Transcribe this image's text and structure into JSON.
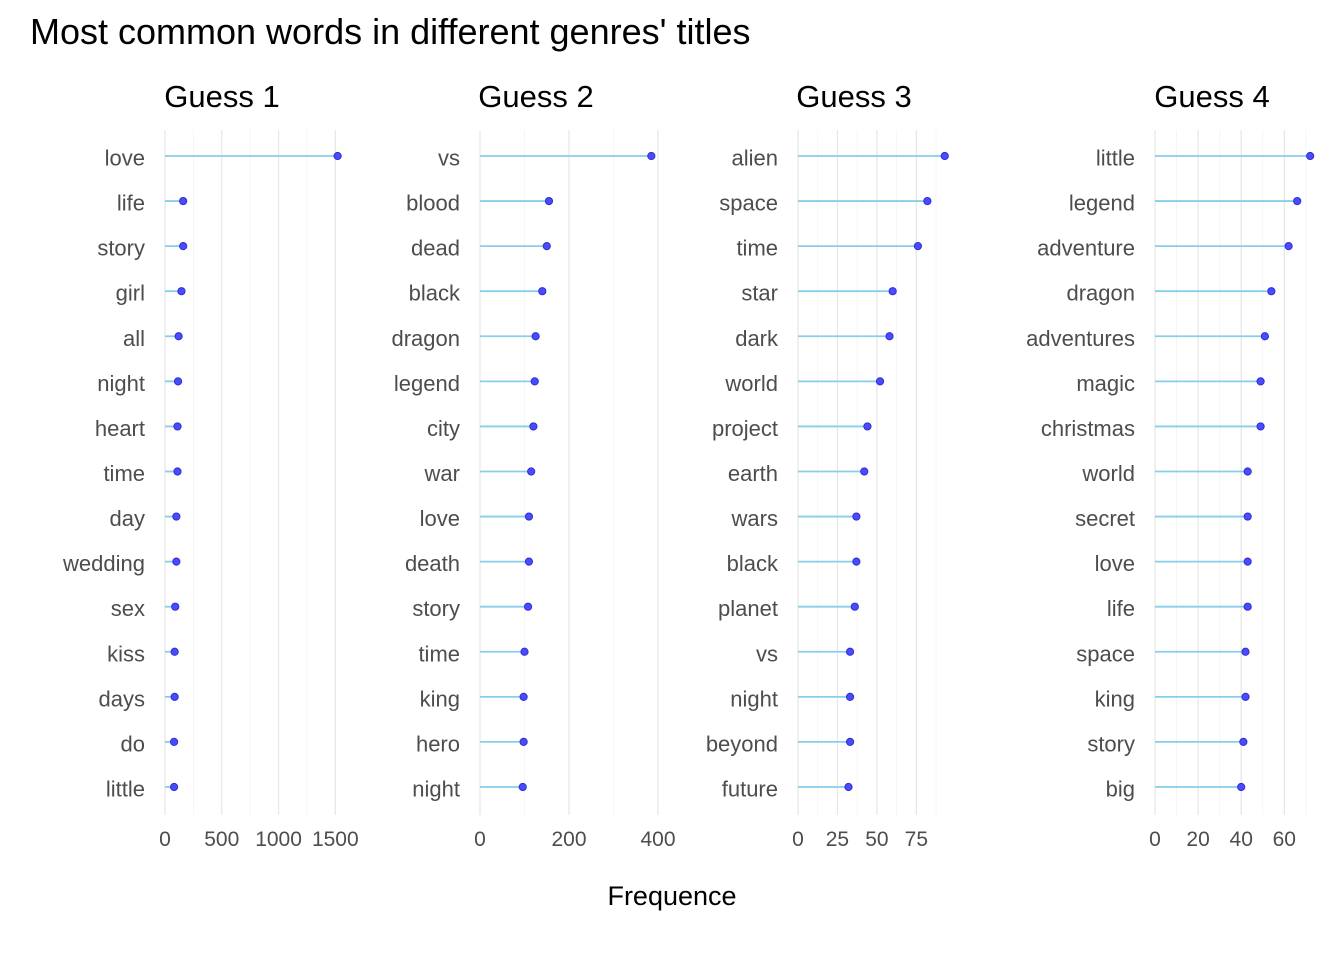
{
  "chart_data": {
    "type": "lollipop",
    "title": "Most common words in different genres' titles",
    "xlabel": "Frequence",
    "panels": [
      {
        "title": "Guess 1",
        "xlim": [
          0,
          1550
        ],
        "ticks": [
          0,
          500,
          1000,
          1500
        ],
        "tick_labels": [
          "0",
          "500",
          "1000",
          "1500"
        ],
        "categories": [
          "love",
          "life",
          "story",
          "girl",
          "all",
          "night",
          "heart",
          "time",
          "day",
          "wedding",
          "sex",
          "kiss",
          "days",
          "do",
          "little"
        ],
        "values": [
          1520,
          160,
          160,
          145,
          120,
          115,
          110,
          110,
          100,
          100,
          90,
          85,
          85,
          80,
          80
        ]
      },
      {
        "title": "Guess 2",
        "xlim": [
          0,
          400
        ],
        "ticks": [
          0,
          200,
          400
        ],
        "tick_labels": [
          "0",
          "200",
          "400"
        ],
        "categories": [
          "vs",
          "blood",
          "dead",
          "black",
          "dragon",
          "legend",
          "city",
          "war",
          "love",
          "death",
          "story",
          "time",
          "king",
          "hero",
          "night"
        ],
        "values": [
          385,
          155,
          150,
          140,
          125,
          123,
          120,
          115,
          110,
          110,
          108,
          100,
          98,
          98,
          96
        ]
      },
      {
        "title": "Guess 3",
        "xlim": [
          0,
          90
        ],
        "ticks": [
          0,
          25,
          50,
          75
        ],
        "tick_labels": [
          "0",
          "25",
          "50",
          "75"
        ],
        "categories": [
          "alien",
          "space",
          "time",
          "star",
          "dark",
          "world",
          "project",
          "earth",
          "wars",
          "black",
          "planet",
          "vs",
          "night",
          "beyond",
          "future"
        ],
        "values": [
          93,
          82,
          76,
          60,
          58,
          52,
          44,
          42,
          37,
          37,
          36,
          33,
          33,
          33,
          32
        ]
      },
      {
        "title": "Guess 4",
        "xlim": [
          0,
          71
        ],
        "ticks": [
          0,
          20,
          40,
          60
        ],
        "tick_labels": [
          "0",
          "20",
          "40",
          "60"
        ],
        "categories": [
          "little",
          "legend",
          "adventure",
          "dragon",
          "adventures",
          "magic",
          "christmas",
          "world",
          "secret",
          "love",
          "life",
          "space",
          "king",
          "story",
          "big"
        ],
        "values": [
          72,
          66,
          62,
          54,
          51,
          49,
          49,
          43,
          43,
          43,
          43,
          42,
          42,
          41,
          40
        ]
      }
    ],
    "grid": true,
    "colors": {
      "stem": "#87ceeb",
      "point": "#4a4aff"
    }
  }
}
